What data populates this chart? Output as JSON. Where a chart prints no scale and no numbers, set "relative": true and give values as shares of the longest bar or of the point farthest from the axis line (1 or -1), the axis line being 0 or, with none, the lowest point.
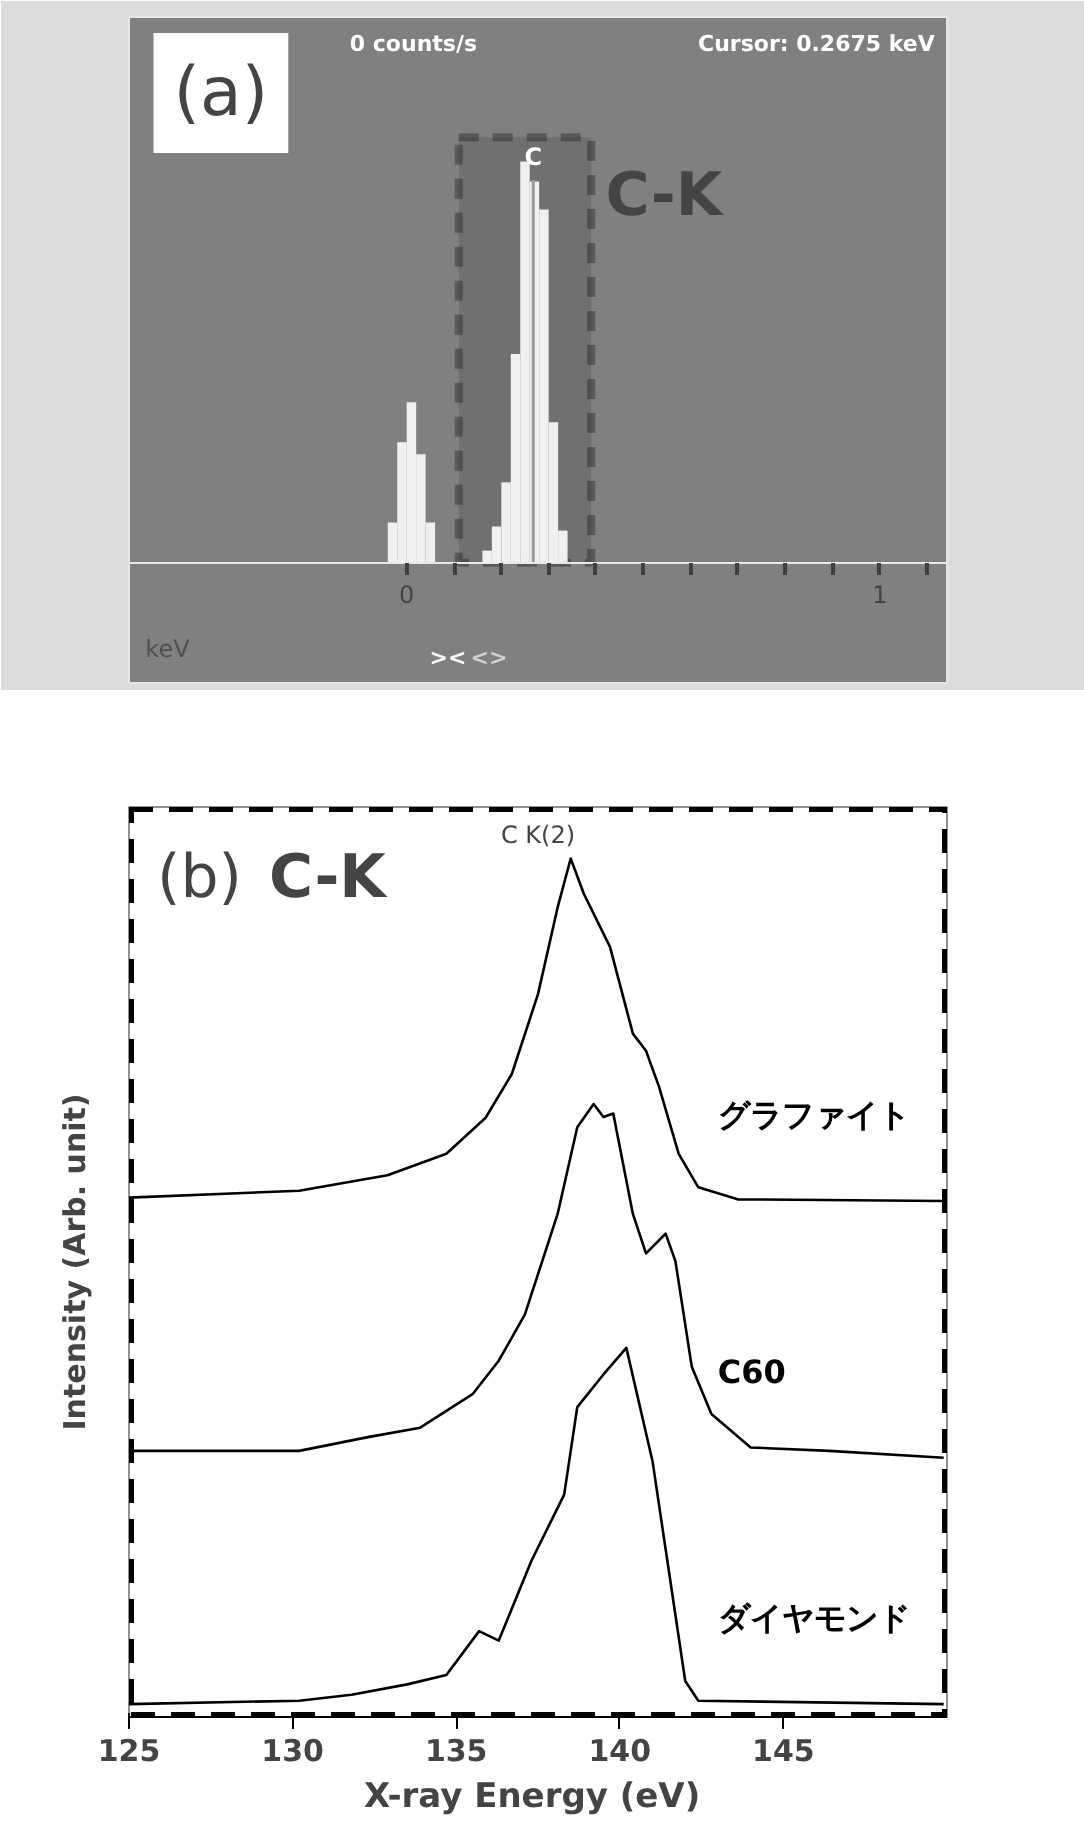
{
  "chart_data": [
    {
      "type": "bar",
      "title": "(a)",
      "xlabel": "keV",
      "relative": true,
      "annotations": [
        "C-K",
        "0  counts/s",
        "Cursor: 0.2675 keV",
        "><",
        "<>"
      ],
      "x": [
        -0.03,
        -0.01,
        0.01,
        0.03,
        0.05,
        0.17,
        0.19,
        0.21,
        0.23,
        0.25,
        0.27,
        0.29,
        0.31,
        0.33
      ],
      "values": [
        0.1,
        0.3,
        0.4,
        0.27,
        0.1,
        0.03,
        0.09,
        0.2,
        0.52,
        1.0,
        0.95,
        0.88,
        0.35,
        0.08
      ],
      "color": "#f0f0f0",
      "xlim": [
        -0.587,
        1.142
      ],
      "xticks": [
        {
          "value": 0,
          "label": "0"
        },
        {
          "value": 0.1,
          "label": null
        },
        {
          "value": 0.2,
          "label": null
        },
        {
          "value": 0.3,
          "label": null
        },
        {
          "value": 0.4,
          "label": null
        },
        {
          "value": 0.5,
          "label": null
        },
        {
          "value": 0.6,
          "label": null
        },
        {
          "value": 0.7,
          "label": null
        },
        {
          "value": 0.8,
          "label": null
        },
        {
          "value": 0.9,
          "label": null
        },
        {
          "value": 1,
          "label": "1"
        },
        {
          "value": 1.1,
          "label": null
        }
      ],
      "ref_lines": [
        {
          "axis": "x",
          "value": 0.2675,
          "label": "C",
          "color": "#9a9a9a"
        }
      ],
      "bands": [
        {
          "axis": "x",
          "from": 0.11,
          "to": 0.39,
          "color": "#000000"
        }
      ]
    },
    {
      "type": "line",
      "title": "(b)",
      "xlabel": "X-ray Energy  (eV)",
      "ylabel": "Intensity (Arb. unit)",
      "relative": true,
      "annotations": [
        "C-K",
        "C K(2)"
      ],
      "xlim": [
        125,
        150
      ],
      "xticks": [
        125,
        130,
        135,
        140,
        145
      ],
      "series": [
        {
          "name": "グラファイト",
          "color": "#000000",
          "x": [
            125.0,
            130.2,
            132.9,
            134.7,
            135.9,
            136.7,
            137.5,
            138.1,
            138.5,
            138.9,
            139.7,
            140.4,
            140.8,
            141.2,
            141.8,
            142.4,
            143.6,
            149.9
          ],
          "values": [
            0.605,
            0.613,
            0.631,
            0.656,
            0.698,
            0.749,
            0.842,
            0.943,
            1.0,
            0.959,
            0.897,
            0.796,
            0.776,
            0.734,
            0.656,
            0.617,
            0.603,
            0.601
          ]
        },
        {
          "name": "C60",
          "color": "#000000",
          "x": [
            125.0,
            130.2,
            132.3,
            133.9,
            135.5,
            136.3,
            137.1,
            138.1,
            138.7,
            139.2,
            139.5,
            139.8,
            140.4,
            140.8,
            141.4,
            141.7,
            142.2,
            142.8,
            144.0,
            146.4,
            149.9
          ],
          "values": [
            0.31,
            0.31,
            0.326,
            0.337,
            0.376,
            0.415,
            0.469,
            0.586,
            0.687,
            0.714,
            0.699,
            0.703,
            0.586,
            0.54,
            0.563,
            0.531,
            0.408,
            0.353,
            0.314,
            0.31,
            0.302
          ]
        },
        {
          "name": "ダイヤモンド",
          "color": "#000000",
          "x": [
            125.0,
            130.2,
            131.8,
            133.5,
            134.7,
            135.7,
            136.3,
            137.3,
            138.3,
            138.7,
            139.5,
            140.2,
            141.0,
            142.0,
            142.4,
            149.9
          ],
          "values": [
            0.015,
            0.019,
            0.026,
            0.038,
            0.049,
            0.1,
            0.089,
            0.182,
            0.259,
            0.361,
            0.399,
            0.43,
            0.298,
            0.042,
            0.019,
            0.015
          ]
        }
      ]
    }
  ]
}
